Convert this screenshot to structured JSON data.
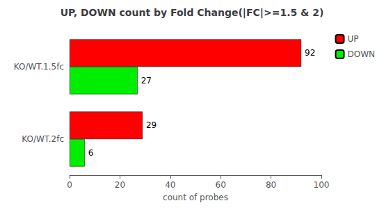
{
  "chart_data": {
    "type": "bar",
    "orientation": "horizontal",
    "title": "UP, DOWN count by Fold Change(|FC|>=1.5 & 2)",
    "xlabel": "count of probes",
    "categories": [
      "KO/WT.2fc",
      "KO/WT.1.5fc"
    ],
    "series": [
      {
        "name": "UP",
        "color": "#FF0000",
        "values": [
          29,
          92
        ]
      },
      {
        "name": "DOWN",
        "color": "#00EE00",
        "values": [
          6,
          27
        ]
      }
    ],
    "xlim": [
      0,
      100
    ],
    "xticks": [
      0,
      20,
      40,
      60,
      80,
      100
    ],
    "grid": false,
    "legend": "right",
    "data_labels": true
  }
}
